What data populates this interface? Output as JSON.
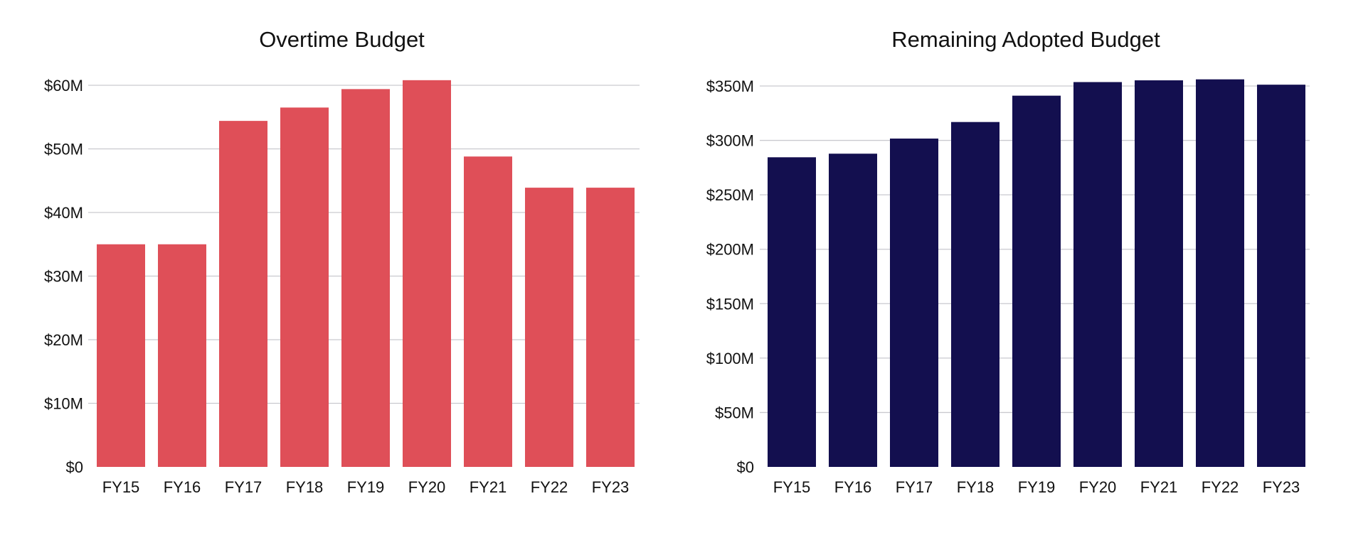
{
  "chart_data": [
    {
      "type": "bar",
      "title": "Overtime Budget",
      "xlabel": "",
      "ylabel": "",
      "categories": [
        "FY15",
        "FY16",
        "FY17",
        "FY18",
        "FY19",
        "FY20",
        "FY21",
        "FY22",
        "FY23"
      ],
      "values": [
        35.0,
        35.0,
        54.4,
        56.5,
        59.4,
        60.8,
        48.8,
        43.9,
        43.9
      ],
      "unit": "M",
      "ylim": [
        0,
        60
      ],
      "y_ticks": [
        0,
        10,
        20,
        30,
        40,
        50,
        60
      ],
      "y_tick_labels": [
        "$0",
        "$10M",
        "$20M",
        "$30M",
        "$40M",
        "$50M",
        "$60M"
      ],
      "color": "#df4f58",
      "grid": true,
      "legend": "none"
    },
    {
      "type": "bar",
      "title": "Remaining Adopted Budget",
      "xlabel": "",
      "ylabel": "",
      "categories": [
        "FY15",
        "FY16",
        "FY17",
        "FY18",
        "FY19",
        "FY20",
        "FY21",
        "FY22",
        "FY23"
      ],
      "values": [
        284.5,
        287.8,
        301.7,
        316.9,
        341.1,
        353.6,
        355.2,
        356.1,
        351.2
      ],
      "unit": "M",
      "ylim": [
        0,
        350
      ],
      "y_ticks": [
        0,
        50,
        100,
        150,
        200,
        250,
        300,
        350
      ],
      "y_tick_labels": [
        "$0",
        "$50M",
        "$100M",
        "$150M",
        "$200M",
        "$250M",
        "$300M",
        "$350M"
      ],
      "color": "#130f4f",
      "grid": true,
      "legend": "none"
    }
  ]
}
